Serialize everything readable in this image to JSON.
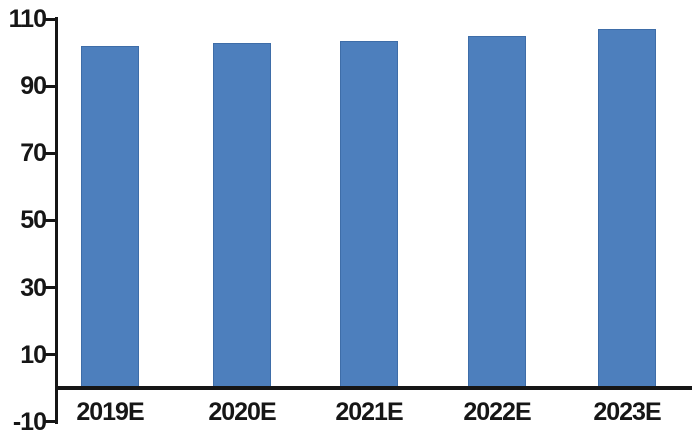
{
  "chart_data": {
    "type": "bar",
    "categories": [
      "2019E",
      "2020E",
      "2021E",
      "2022E",
      "2023E"
    ],
    "values": [
      102,
      103,
      103.5,
      105,
      107
    ],
    "yticks": [
      110,
      90,
      70,
      50,
      30,
      10,
      -10
    ],
    "ylim": [
      -10,
      110
    ],
    "baseline_value": 0,
    "grid": false,
    "legend": "none",
    "colors": {
      "bar_fill": "#4d7fbd",
      "bar_border": "#3e6da8",
      "axis": "#161616",
      "label_text": "#161616"
    }
  }
}
